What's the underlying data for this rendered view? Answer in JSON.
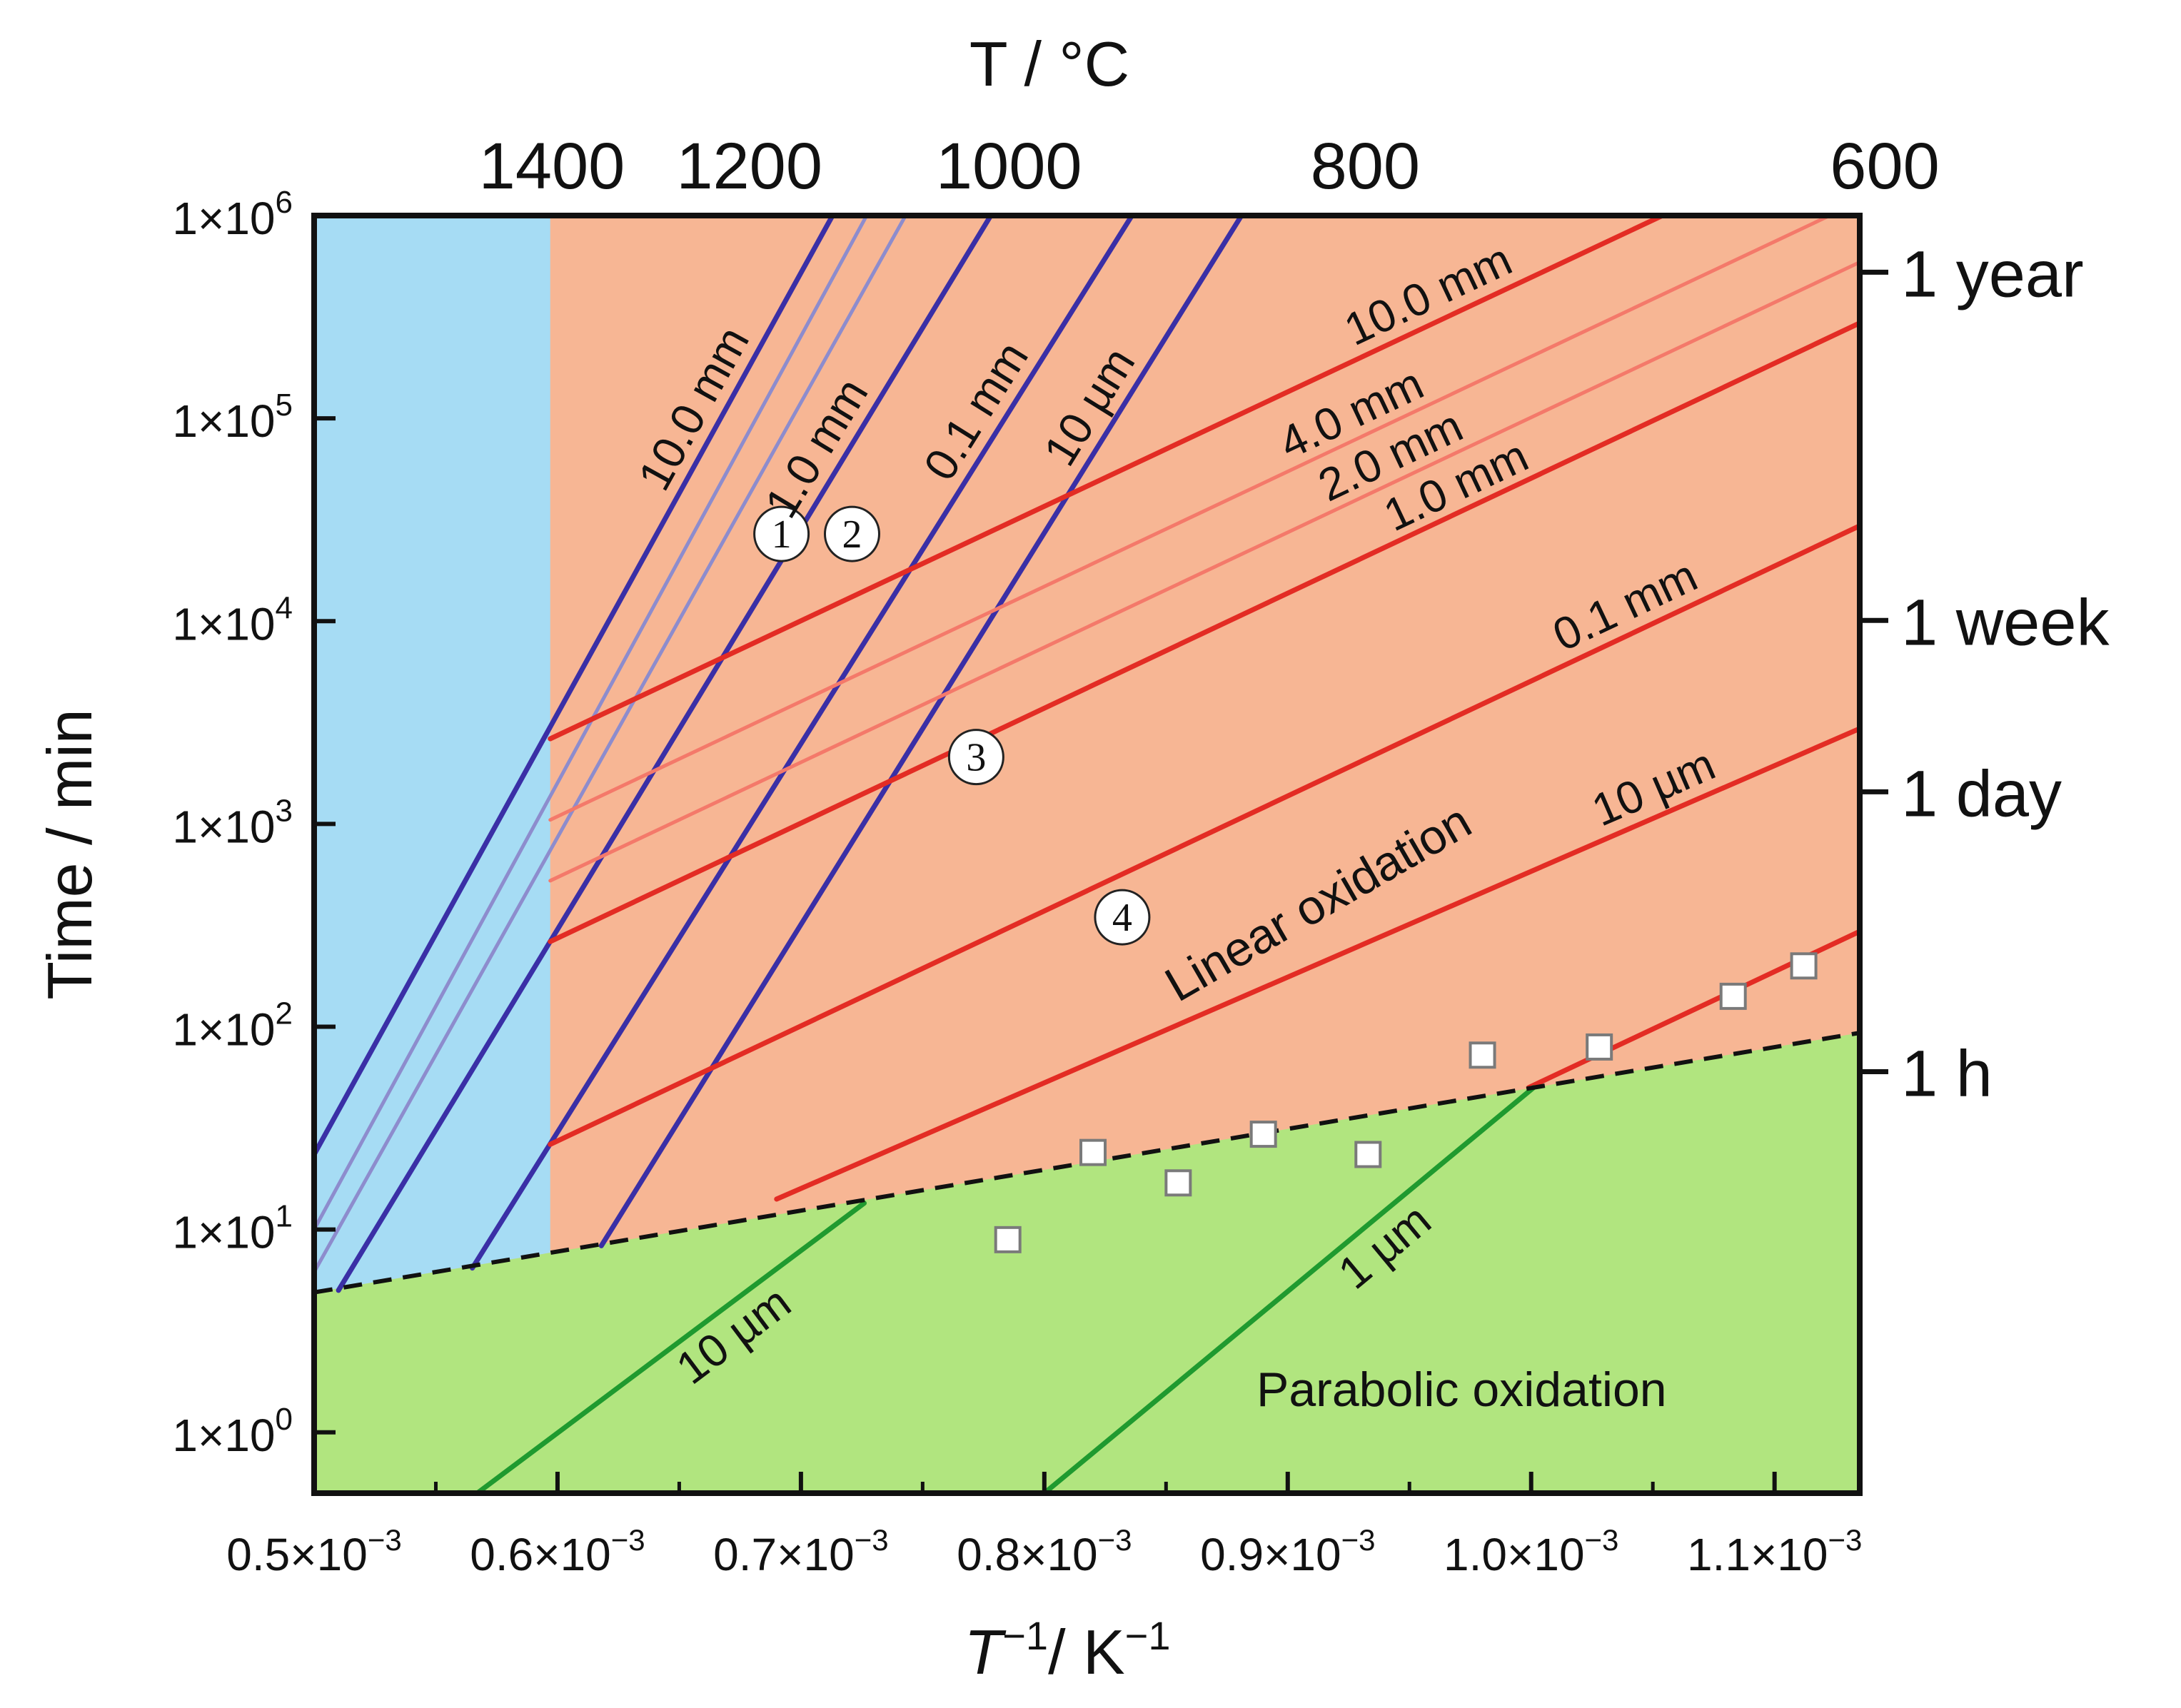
{
  "chart_data": {
    "type": "line",
    "title": "",
    "xlabel_base": "T",
    "xlabel_sup": "−1",
    "xlabel_unit": "/ K",
    "xlabel_unit_sup": "−1",
    "ylabel": "Time / min",
    "top_axis_label": "T / °C",
    "xlim": [
      0.0005,
      0.001135
    ],
    "ylim_log10": [
      -0.3,
      6
    ],
    "x_ticks": [
      {
        "value": 0.0005,
        "mantissa": "0.5×10",
        "exp": "−3"
      },
      {
        "value": 0.0006,
        "mantissa": "0.6×10",
        "exp": "−3"
      },
      {
        "value": 0.0007,
        "mantissa": "0.7×10",
        "exp": "−3"
      },
      {
        "value": 0.0008,
        "mantissa": "0.8×10",
        "exp": "−3"
      },
      {
        "value": 0.0009,
        "mantissa": "0.9×10",
        "exp": "−3"
      },
      {
        "value": 0.001,
        "mantissa": "1.0×10",
        "exp": "−3"
      },
      {
        "value": 0.0011,
        "mantissa": "1.1×10",
        "exp": "−3"
      }
    ],
    "y_ticks": [
      {
        "log10": 0,
        "base": "1×10",
        "exp": "0"
      },
      {
        "log10": 1,
        "base": "1×10",
        "exp": "1"
      },
      {
        "log10": 2,
        "base": "1×10",
        "exp": "2"
      },
      {
        "log10": 3,
        "base": "1×10",
        "exp": "3"
      },
      {
        "log10": 4,
        "base": "1×10",
        "exp": "4"
      },
      {
        "log10": 5,
        "base": "1×10",
        "exp": "5"
      },
      {
        "log10": 6,
        "base": "1×10",
        "exp": "6"
      }
    ],
    "top_ticks": [
      {
        "celsius": 1400,
        "label": "1400"
      },
      {
        "celsius": 1200,
        "label": "1200"
      },
      {
        "celsius": 1000,
        "label": "1000"
      },
      {
        "celsius": 800,
        "label": "800"
      },
      {
        "celsius": 600,
        "label": "600"
      }
    ],
    "right_ticks": [
      {
        "minutes": 525600,
        "label": "1 year"
      },
      {
        "minutes": 10080,
        "label": "1 week"
      },
      {
        "minutes": 1440,
        "label": "1 day"
      },
      {
        "minutes": 60,
        "label": "1 h"
      }
    ],
    "regions": [
      {
        "name": "blue-region",
        "color": "#a6dcf4"
      },
      {
        "name": "linear-oxidation",
        "label": "Linear oxidation",
        "color": "#f7b694"
      },
      {
        "name": "parabolic-oxidation",
        "label": "Parabolic oxidation",
        "color": "#b1e57f"
      }
    ],
    "x_blue_boundary": 0.000597,
    "boundary_line": {
      "style": "dashed",
      "color": "#111111",
      "points": [
        [
          0.0005,
          0.69
        ],
        [
          0.001135,
          1.97
        ]
      ]
    },
    "series": [
      {
        "name": "blue 10.0 mm",
        "label": "10.0 mm",
        "color": "#3a2fa6",
        "points": [
          [
            0.0005,
            1.37
          ],
          [
            0.000713,
            6.0
          ]
        ]
      },
      {
        "name": "blue 4.0 mm",
        "label": "",
        "color": "#8d8ccd",
        "points": [
          [
            0.0005,
            1.0
          ],
          [
            0.000727,
            6.0
          ]
        ]
      },
      {
        "name": "blue 2.0 mm",
        "label": "",
        "color": "#8d8ccd",
        "points": [
          [
            0.0005,
            0.79
          ],
          [
            0.000743,
            6.0
          ]
        ]
      },
      {
        "name": "blue 1.0 mm",
        "label": "1.0 mm",
        "color": "#3a2fa6",
        "points": [
          [
            0.00051,
            0.7
          ],
          [
            0.000778,
            6.0
          ]
        ]
      },
      {
        "name": "blue 0.1 mm",
        "label": "0.1 mm",
        "color": "#3a2fa6",
        "points": [
          [
            0.000565,
            0.81
          ],
          [
            0.000836,
            6.0
          ]
        ]
      },
      {
        "name": "blue 10 µm",
        "label": "10 µm",
        "color": "#3a2fa6",
        "points": [
          [
            0.000618,
            0.92
          ],
          [
            0.000881,
            6.0
          ]
        ]
      },
      {
        "name": "red 10.0 mm",
        "label": "10.0 mm",
        "color": "#e32c24",
        "points": [
          [
            0.000597,
            3.42
          ],
          [
            0.001054,
            6.0
          ]
        ]
      },
      {
        "name": "red 4.0 mm",
        "label": "4.0 mm",
        "color": "#f4796a",
        "points": [
          [
            0.000597,
            3.02
          ],
          [
            0.001135,
            6.07
          ]
        ]
      },
      {
        "name": "red 2.0 mm",
        "label": "2.0 mm",
        "color": "#f4796a",
        "points": [
          [
            0.000597,
            2.72
          ],
          [
            0.001135,
            5.77
          ]
        ]
      },
      {
        "name": "red 1.0 mm",
        "label": "1.0 mm",
        "color": "#e32c24",
        "points": [
          [
            0.000597,
            2.42
          ],
          [
            0.001135,
            5.47
          ]
        ]
      },
      {
        "name": "red 0.1 mm",
        "label": "0.1 mm",
        "color": "#e32c24",
        "points": [
          [
            0.000597,
            1.42
          ],
          [
            0.001135,
            4.47
          ]
        ]
      },
      {
        "name": "red 10 µm",
        "label": "10 µm",
        "color": "#e32c24",
        "points": [
          [
            0.00069,
            1.15
          ],
          [
            0.001135,
            3.47
          ]
        ]
      },
      {
        "name": "red 1 µm",
        "label": "",
        "color": "#e32c24",
        "points": [
          [
            0.000999,
            1.7
          ],
          [
            0.001135,
            2.47
          ]
        ]
      },
      {
        "name": "green 10 µm",
        "label": "10 µm",
        "color": "#1f9a2f",
        "points": [
          [
            0.000567,
            -0.3
          ],
          [
            0.000726,
            1.13
          ]
        ]
      },
      {
        "name": "green 1 µm",
        "label": "1 µm",
        "color": "#1f9a2f",
        "points": [
          [
            0.0008,
            -0.3
          ],
          [
            0.001001,
            1.7
          ]
        ]
      }
    ],
    "markers": [
      {
        "label": "1",
        "x": 0.000692,
        "log10_y": 4.43
      },
      {
        "label": "2",
        "x": 0.000721,
        "log10_y": 4.43
      },
      {
        "label": "3",
        "x": 0.000772,
        "log10_y": 3.33
      },
      {
        "label": "4",
        "x": 0.000832,
        "log10_y": 2.54
      }
    ],
    "data_points": [
      {
        "x": 0.000785,
        "log10_y": 0.95
      },
      {
        "x": 0.00082,
        "log10_y": 1.38
      },
      {
        "x": 0.000855,
        "log10_y": 1.23
      },
      {
        "x": 0.00089,
        "log10_y": 1.47
      },
      {
        "x": 0.000933,
        "log10_y": 1.37
      },
      {
        "x": 0.00098,
        "log10_y": 1.86
      },
      {
        "x": 0.001028,
        "log10_y": 1.9
      },
      {
        "x": 0.001083,
        "log10_y": 2.15
      },
      {
        "x": 0.001112,
        "log10_y": 2.3
      }
    ]
  }
}
